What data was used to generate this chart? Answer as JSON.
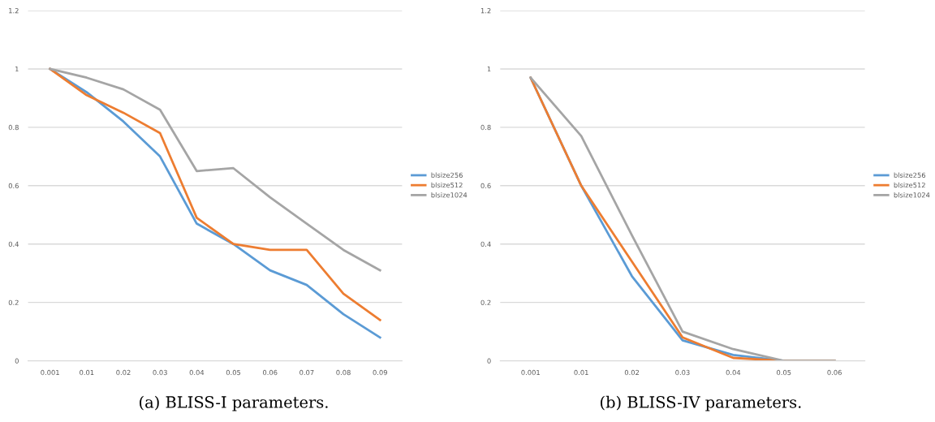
{
  "chart_data": [
    {
      "type": "line",
      "categories": [
        "0.001",
        "0.01",
        "0.02",
        "0.03",
        "0.04",
        "0.05",
        "0.06",
        "0.07",
        "0.08",
        "0.09"
      ],
      "ylim": [
        0,
        1.2
      ],
      "yticks": [
        0,
        0.2,
        0.4,
        0.6,
        0.8,
        1,
        1.2
      ],
      "grid": "y",
      "legend": "right",
      "annotations": [
        "(a) BLISS-I parameters."
      ],
      "series": [
        {
          "name": "blsize256",
          "color": "#5b9bd5",
          "values": [
            1,
            0.92,
            0.82,
            0.7,
            0.47,
            0.4,
            0.31,
            0.26,
            0.16,
            0.08
          ]
        },
        {
          "name": "blsize512",
          "color": "#ed7d31",
          "values": [
            1,
            0.91,
            0.85,
            0.78,
            0.49,
            0.4,
            0.38,
            0.38,
            0.23,
            0.14
          ]
        },
        {
          "name": "blsize1024",
          "color": "#a5a5a5",
          "values": [
            1,
            0.97,
            0.93,
            0.86,
            0.65,
            0.66,
            0.56,
            0.47,
            0.38,
            0.31
          ]
        }
      ]
    },
    {
      "type": "line",
      "categories": [
        "0.001",
        "0.01",
        "0.02",
        "0.03",
        "0.04",
        "0.05",
        "0.06"
      ],
      "ylim": [
        0,
        1.2
      ],
      "yticks": [
        0,
        0.2,
        0.4,
        0.6,
        0.8,
        1,
        1.2
      ],
      "grid": "y",
      "legend": "right",
      "annotations": [
        "(b) BLISS-IV parameters."
      ],
      "series": [
        {
          "name": "blsize256",
          "color": "#5b9bd5",
          "values": [
            0.97,
            0.6,
            0.29,
            0.07,
            0.02,
            0,
            0
          ]
        },
        {
          "name": "blsize512",
          "color": "#ed7d31",
          "values": [
            0.97,
            0.6,
            0.34,
            0.08,
            0.01,
            0,
            0
          ]
        },
        {
          "name": "blsize1024",
          "color": "#a5a5a5",
          "values": [
            0.97,
            0.77,
            0.43,
            0.1,
            0.04,
            0,
            0
          ]
        }
      ]
    }
  ]
}
